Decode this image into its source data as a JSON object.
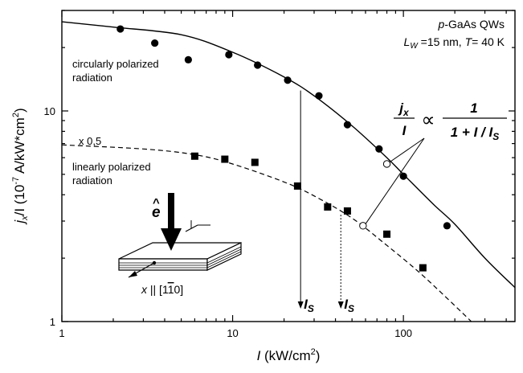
{
  "chart_data": {
    "type": "scatter",
    "title": "",
    "corner_label": {
      "line1_prefix": "p",
      "line1_suffix": "-GaAs QWs",
      "line2_a": "L",
      "line2_sub": "W",
      "line2_b": " =15 nm, ",
      "line2_c": "T",
      "line2_d": "= 40 K"
    },
    "xlabel": {
      "var": "I",
      "units": " (kW/cm",
      "sup": "2",
      "close": ")"
    },
    "ylabel": {
      "var": "j",
      "sub": "x",
      "rest": "/I  (10",
      "sup": "-7",
      "units": " A/kW*cm",
      "sup2": "2",
      "close": ")"
    },
    "x_scale": "log",
    "y_scale": "log",
    "xlim": [
      1,
      450
    ],
    "ylim": [
      1,
      30
    ],
    "x_ticks": [
      {
        "v": 1,
        "label": "1"
      },
      {
        "v": 10,
        "label": "10"
      },
      {
        "v": 100,
        "label": "100"
      }
    ],
    "y_ticks": [
      {
        "v": 1,
        "label": "1"
      },
      {
        "v": 10,
        "label": "10"
      }
    ],
    "grid": false,
    "series": [
      {
        "name": "circularly polarized radiation",
        "label_line1": "circularly polarized",
        "label_line2": "radiation",
        "marker": "circle",
        "points": [
          [
            2.2,
            24.5
          ],
          [
            3.5,
            21.0
          ],
          [
            5.5,
            17.5
          ],
          [
            9.5,
            18.5
          ],
          [
            14.0,
            16.5
          ],
          [
            21.0,
            14.0
          ],
          [
            32.0,
            11.8
          ],
          [
            47.0,
            8.6
          ],
          [
            72.0,
            6.6
          ],
          [
            100.0,
            4.9
          ],
          [
            180.0,
            2.85
          ]
        ],
        "fit": [
          [
            1,
            26.5
          ],
          [
            2,
            25.0
          ],
          [
            5,
            23.0
          ],
          [
            10,
            19.0
          ],
          [
            20,
            14.5
          ],
          [
            30,
            11.8
          ],
          [
            50,
            8.5
          ],
          [
            80,
            6.0
          ],
          [
            100,
            5.0
          ],
          [
            150,
            3.6
          ],
          [
            200,
            2.9
          ],
          [
            300,
            2.0
          ],
          [
            450,
            1.45
          ]
        ]
      },
      {
        "name": "linearly polarized radiation",
        "label_line1": "linearly polarized",
        "label_line2": "radiation",
        "scale_note": "x 0,5",
        "marker": "square",
        "points": [
          [
            6.0,
            6.1
          ],
          [
            9.0,
            5.9
          ],
          [
            13.5,
            5.7
          ],
          [
            24.0,
            4.4
          ],
          [
            36.0,
            3.5
          ],
          [
            47.0,
            3.35
          ],
          [
            80.0,
            2.6
          ],
          [
            130.0,
            1.8
          ]
        ],
        "fit": [
          [
            1,
            6.9
          ],
          [
            3,
            6.6
          ],
          [
            6,
            6.2
          ],
          [
            10,
            5.6
          ],
          [
            20,
            4.6
          ],
          [
            30,
            3.95
          ],
          [
            50,
            3.1
          ],
          [
            80,
            2.3
          ],
          [
            120,
            1.75
          ],
          [
            170,
            1.35
          ],
          [
            250,
            1.0
          ]
        ]
      }
    ],
    "saturation_markers": [
      {
        "x": 25,
        "label": "I",
        "sub": "S",
        "style": "solid"
      },
      {
        "x": 43,
        "label": "I",
        "sub": "S",
        "style": "dotted"
      }
    ],
    "formula": {
      "num_var": "j",
      "num_sub": "x",
      "den_var": "I",
      "prop": "∝",
      "rhs_num": "1",
      "rhs_den_a": "1 + ",
      "rhs_den_b": "I",
      "rhs_den_c": " / ",
      "rhs_den_d": "I",
      "rhs_den_sub": "S"
    },
    "formula_targets": [
      {
        "x": 80,
        "y": 5.6
      },
      {
        "x": 58,
        "y": 2.85
      }
    ],
    "inset": {
      "vector_label": "e",
      "vector_hat": "^",
      "axis_label_a": "x",
      "axis_label_b": " || [1",
      "axis_label_c": "1",
      "axis_label_d": "0]"
    }
  }
}
